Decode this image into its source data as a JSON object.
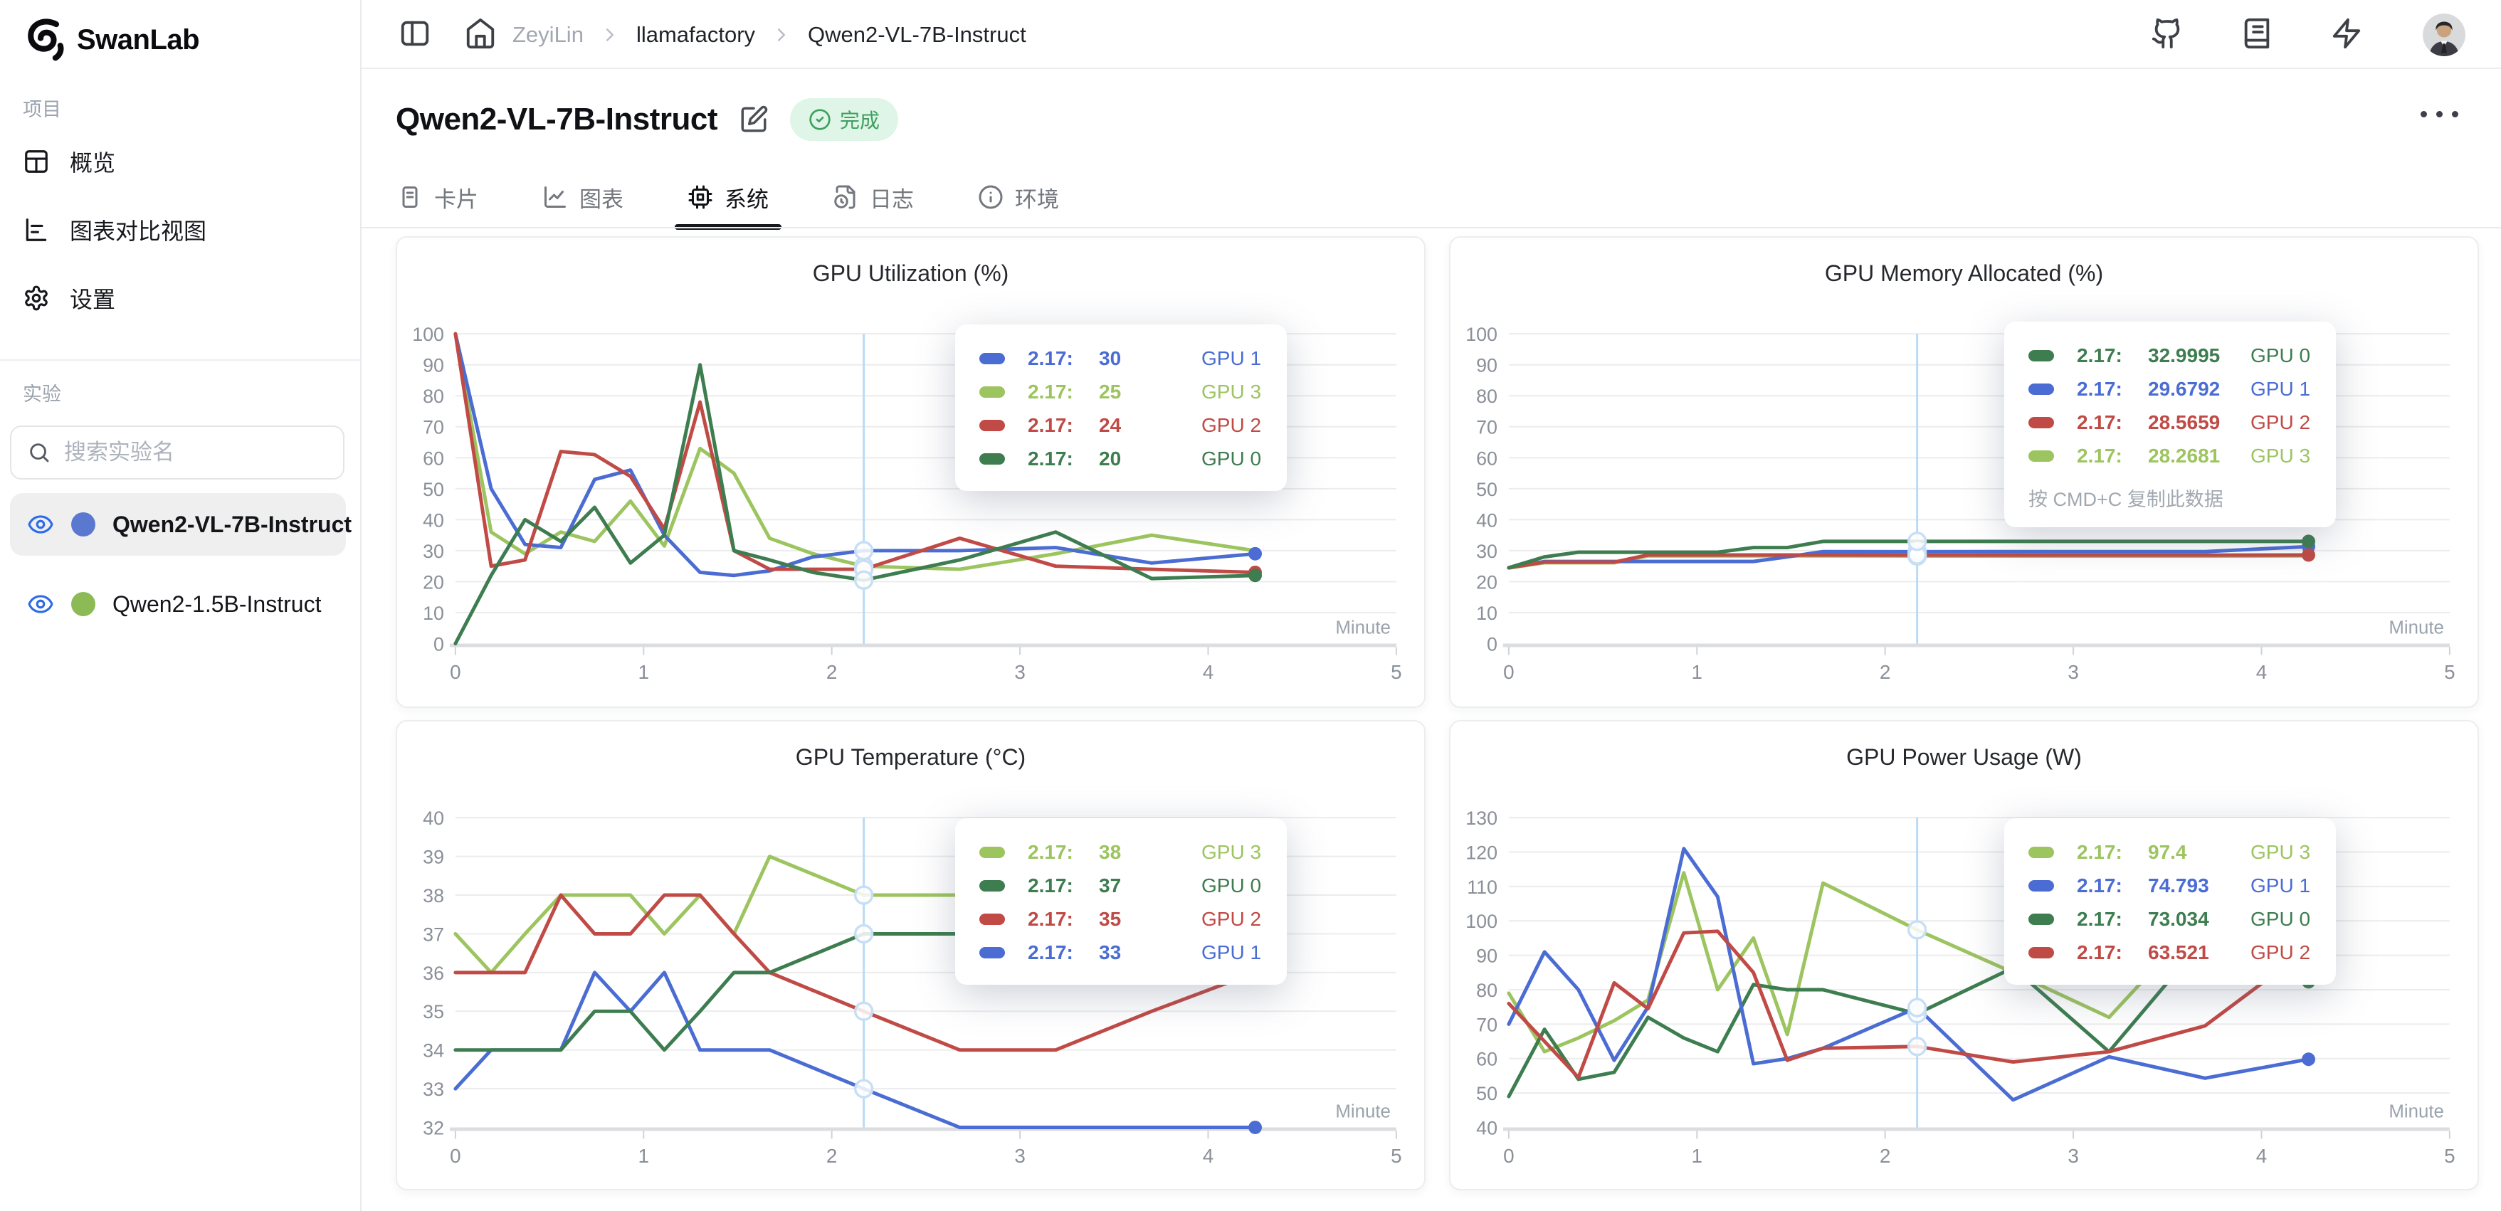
{
  "sidebar": {
    "logo_text": "SwanLab",
    "section_project": "项目",
    "items": [
      {
        "label": "概览"
      },
      {
        "label": "图表对比视图"
      },
      {
        "label": "设置"
      }
    ],
    "section_experiments": "实验",
    "search_placeholder": "搜索实验名",
    "experiments": [
      {
        "name": "Qwen2-VL-7B-Instruct",
        "color": "#5b78d0",
        "selected": true
      },
      {
        "name": "Qwen2-1.5B-Instruct",
        "color": "#8cba55",
        "selected": false
      }
    ]
  },
  "header": {
    "breadcrumb": [
      {
        "label": "ZeyiLin",
        "muted": true
      },
      {
        "label": "llamafactory",
        "muted": false
      },
      {
        "label": "Qwen2-VL-7B-Instruct",
        "muted": false
      }
    ]
  },
  "page": {
    "title": "Qwen2-VL-7B-Instruct",
    "status_badge": "完成",
    "tabs": [
      {
        "label": "卡片",
        "active": false
      },
      {
        "label": "图表",
        "active": false
      },
      {
        "label": "系统",
        "active": true
      },
      {
        "label": "日志",
        "active": false
      },
      {
        "label": "环境",
        "active": false
      }
    ]
  },
  "colors": {
    "blue": "#4a6cd3",
    "light_green": "#9cc45f",
    "red": "#c04a45",
    "dark_green": "#3d7d4f",
    "crosshair": "#badbf5",
    "grid": "#ececec",
    "axis": "#dcdde0",
    "tick_text": "#8a8f98"
  },
  "chart_data": [
    {
      "type": "line",
      "title": "GPU Utilization (%)",
      "xlabel": "Minute",
      "xlim": [
        0,
        5
      ],
      "xticks": [
        0,
        1,
        2,
        3,
        4,
        5
      ],
      "ylim": [
        0,
        100
      ],
      "yticks": [
        0,
        10,
        20,
        30,
        40,
        50,
        60,
        70,
        80,
        90,
        100
      ],
      "crosshair_x": 2.17,
      "x": [
        0,
        0.19,
        0.37,
        0.56,
        0.74,
        0.93,
        1.11,
        1.3,
        1.48,
        1.67,
        1.9,
        2.17,
        2.68,
        3.19,
        3.7,
        4.25
      ],
      "series": [
        {
          "name": "GPU 3",
          "color": "#9cc45f",
          "dot": false,
          "y": [
            100,
            36,
            29,
            36,
            33,
            46,
            31.5,
            63,
            55,
            34,
            29,
            25,
            24,
            29,
            35,
            30
          ]
        },
        {
          "name": "GPU 1",
          "color": "#4a6cd3",
          "dot": true,
          "y": [
            100,
            50,
            32,
            31,
            53,
            56,
            35,
            23,
            22,
            23.5,
            28,
            30,
            30,
            31,
            26,
            29
          ]
        },
        {
          "name": "GPU 2",
          "color": "#c04a45",
          "dot": true,
          "y": [
            100,
            25,
            27,
            62,
            61,
            54,
            37,
            78,
            30,
            24,
            24,
            24,
            34,
            25,
            24,
            23
          ]
        },
        {
          "name": "GPU 0",
          "color": "#3d7d4f",
          "dot": true,
          "y": [
            0,
            22,
            40,
            33,
            44,
            26,
            35,
            90,
            30,
            27,
            23,
            20.5,
            27,
            36,
            21,
            22
          ]
        }
      ],
      "tooltip": {
        "rows": [
          {
            "color": "#4a6cd3",
            "time": "2.17:",
            "value": "30",
            "label": "GPU 1"
          },
          {
            "color": "#9cc45f",
            "time": "2.17:",
            "value": "25",
            "label": "GPU 3"
          },
          {
            "color": "#c04a45",
            "time": "2.17:",
            "value": "24",
            "label": "GPU 2"
          },
          {
            "color": "#3d7d4f",
            "time": "2.17:",
            "value": "20",
            "label": "GPU 0"
          }
        ],
        "footer": null
      }
    },
    {
      "type": "line",
      "title": "GPU Memory Allocated (%)",
      "xlabel": "Minute",
      "xlim": [
        0,
        5
      ],
      "xticks": [
        0,
        1,
        2,
        3,
        4,
        5
      ],
      "ylim": [
        0,
        100
      ],
      "yticks": [
        0,
        10,
        20,
        30,
        40,
        50,
        60,
        70,
        80,
        90,
        100
      ],
      "crosshair_x": 2.17,
      "x": [
        0,
        0.19,
        0.37,
        0.56,
        0.74,
        0.93,
        1.11,
        1.3,
        1.48,
        1.67,
        2.17,
        2.68,
        3.19,
        3.7,
        4.25
      ],
      "series": [
        {
          "name": "GPU 3",
          "color": "#9cc45f",
          "dot": false,
          "y": [
            24.4,
            26.1,
            26.1,
            26.1,
            28.3,
            28.3,
            28.3,
            28.3,
            28.3,
            28.3,
            28.2681,
            28.27,
            28.27,
            28.27,
            28.3
          ]
        },
        {
          "name": "GPU 1",
          "color": "#4a6cd3",
          "dot": true,
          "y": [
            24.5,
            26.5,
            26.5,
            26.5,
            26.5,
            26.5,
            26.5,
            26.5,
            28,
            29.7,
            29.6792,
            29.7,
            29.7,
            29.7,
            31.3
          ]
        },
        {
          "name": "GPU 2",
          "color": "#c04a45",
          "dot": true,
          "y": [
            24.5,
            26.3,
            26.3,
            26.3,
            28.6,
            28.6,
            28.6,
            28.6,
            28.6,
            28.6,
            28.5659,
            28.57,
            28.57,
            28.57,
            28.6
          ]
        },
        {
          "name": "GPU 0",
          "color": "#3d7d4f",
          "dot": true,
          "y": [
            24.5,
            28,
            29.5,
            29.5,
            29.5,
            29.5,
            29.5,
            31,
            31,
            33,
            32.9995,
            33,
            33,
            33,
            33
          ]
        }
      ],
      "tooltip": {
        "rows": [
          {
            "color": "#3d7d4f",
            "time": "2.17:",
            "value": "32.9995",
            "label": "GPU 0"
          },
          {
            "color": "#4a6cd3",
            "time": "2.17:",
            "value": "29.6792",
            "label": "GPU 1"
          },
          {
            "color": "#c04a45",
            "time": "2.17:",
            "value": "28.5659",
            "label": "GPU 2"
          },
          {
            "color": "#9cc45f",
            "time": "2.17:",
            "value": "28.2681",
            "label": "GPU 3"
          }
        ],
        "footer": "按 CMD+C 复制此数据"
      }
    },
    {
      "type": "line",
      "title": "GPU Temperature (°C)",
      "xlabel": "Minute",
      "xlim": [
        0,
        5
      ],
      "xticks": [
        0,
        1,
        2,
        3,
        4,
        5
      ],
      "ylim": [
        32,
        40
      ],
      "yticks": [
        32,
        33,
        34,
        35,
        36,
        37,
        38,
        39,
        40
      ],
      "crosshair_x": 2.17,
      "x": [
        0,
        0.19,
        0.37,
        0.56,
        0.74,
        0.93,
        1.11,
        1.3,
        1.48,
        1.67,
        2.17,
        2.68,
        3.19,
        3.7,
        4.25
      ],
      "series": [
        {
          "name": "GPU 3",
          "color": "#9cc45f",
          "dot": false,
          "y": [
            37,
            36,
            37,
            38,
            38,
            38,
            37,
            38,
            37,
            39,
            38,
            38,
            38,
            38,
            38
          ]
        },
        {
          "name": "GPU 1",
          "color": "#4a6cd3",
          "dot": true,
          "y": [
            33,
            34,
            34,
            34,
            36,
            35,
            36,
            34,
            34,
            34,
            33,
            32,
            32,
            32,
            32
          ]
        },
        {
          "name": "GPU 2",
          "color": "#c04a45",
          "dot": true,
          "y": [
            36,
            36,
            36,
            38,
            37,
            37,
            38,
            38,
            37,
            36,
            35,
            34,
            34,
            35,
            36
          ]
        },
        {
          "name": "GPU 0",
          "color": "#3d7d4f",
          "dot": false,
          "y": [
            34,
            34,
            34,
            34,
            35,
            35,
            34,
            35,
            36,
            36,
            37,
            37,
            36,
            37,
            37
          ]
        }
      ],
      "tooltip": {
        "rows": [
          {
            "color": "#9cc45f",
            "time": "2.17:",
            "value": "38",
            "label": "GPU 3"
          },
          {
            "color": "#3d7d4f",
            "time": "2.17:",
            "value": "37",
            "label": "GPU 0"
          },
          {
            "color": "#c04a45",
            "time": "2.17:",
            "value": "35",
            "label": "GPU 2"
          },
          {
            "color": "#4a6cd3",
            "time": "2.17:",
            "value": "33",
            "label": "GPU 1"
          }
        ],
        "footer": null
      }
    },
    {
      "type": "line",
      "title": "GPU Power Usage (W)",
      "xlabel": "Minute",
      "xlim": [
        0,
        5
      ],
      "xticks": [
        0,
        1,
        2,
        3,
        4,
        5
      ],
      "ylim": [
        40,
        130
      ],
      "yticks": [
        40,
        50,
        60,
        70,
        80,
        90,
        100,
        110,
        120,
        130
      ],
      "crosshair_x": 2.17,
      "x": [
        0,
        0.19,
        0.37,
        0.56,
        0.74,
        0.93,
        1.11,
        1.3,
        1.48,
        1.67,
        2.17,
        2.68,
        3.19,
        3.7,
        4.25
      ],
      "series": [
        {
          "name": "GPU 3",
          "color": "#9cc45f",
          "dot": false,
          "y": [
            79,
            62,
            66,
            71,
            77,
            114,
            80,
            95,
            67,
            111,
            97.4,
            85,
            72,
            102,
            96
          ]
        },
        {
          "name": "GPU 0",
          "color": "#3d7d4f",
          "dot": true,
          "y": [
            49,
            68.5,
            54,
            56,
            72,
            66,
            62,
            81.5,
            80,
            80,
            73.034,
            86.4,
            62,
            95,
            82.3
          ]
        },
        {
          "name": "GPU 1",
          "color": "#4a6cd3",
          "dot": true,
          "y": [
            70,
            91,
            80,
            59.5,
            75,
            121,
            107,
            58.5,
            60,
            63,
            74.793,
            48,
            60.5,
            54.3,
            59.8
          ]
        },
        {
          "name": "GPU 2",
          "color": "#c04a45",
          "dot": true,
          "y": [
            76,
            65,
            54.5,
            82,
            74.5,
            96.5,
            97,
            85,
            59.5,
            63,
            63.521,
            59,
            62,
            69.5,
            92
          ]
        }
      ],
      "tooltip": {
        "rows": [
          {
            "color": "#9cc45f",
            "time": "2.17:",
            "value": "97.4",
            "label": "GPU 3"
          },
          {
            "color": "#4a6cd3",
            "time": "2.17:",
            "value": "74.793",
            "label": "GPU 1"
          },
          {
            "color": "#3d7d4f",
            "time": "2.17:",
            "value": "73.034",
            "label": "GPU 0"
          },
          {
            "color": "#c04a45",
            "time": "2.17:",
            "value": "63.521",
            "label": "GPU 2"
          }
        ],
        "footer": null
      }
    }
  ]
}
